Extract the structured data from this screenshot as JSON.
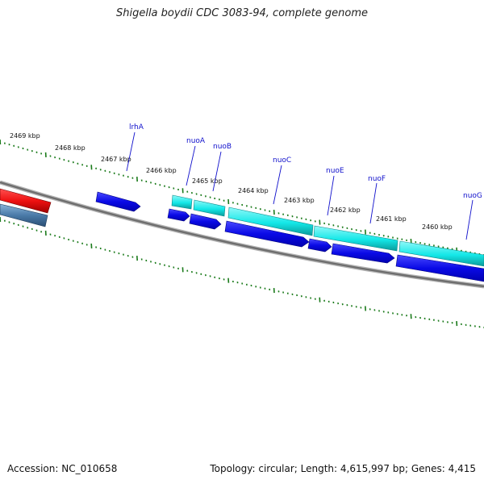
{
  "title": "Shigella boydii CDC 3083-94, complete genome",
  "footer": {
    "accession": "Accession: NC_010658",
    "summary": "Topology: circular; Length: 4,615,997 bp; Genes: 4,415"
  },
  "colors": {
    "backbone": "#7a7a7a",
    "tick": "#1a7a1a",
    "gene_label": "#1111cc",
    "gene_blue": "#0a0ae6",
    "gene_cyan": "#12e6e6",
    "gene_red": "#ee1111",
    "gene_steel": "#4a7aa8"
  },
  "ruler_labels": [
    "2469 kbp",
    "2468 kbp",
    "2467 kbp",
    "2466 kbp",
    "2465 kbp",
    "2464 kbp",
    "2463 kbp",
    "2462 kbp",
    "2461 kbp",
    "2460 kbp"
  ],
  "genes": [
    {
      "name": "lrhA",
      "track": "reverse",
      "color": "blue"
    },
    {
      "name": "nuoA",
      "track": "reverse",
      "color": "blue"
    },
    {
      "name": "nuoB",
      "track": "reverse",
      "color": "blue"
    },
    {
      "name": "nuoC",
      "track": "reverse",
      "color": "blue"
    },
    {
      "name": "nuoE",
      "track": "reverse",
      "color": "blue"
    },
    {
      "name": "nuoF",
      "track": "reverse",
      "color": "blue"
    },
    {
      "name": "nuoG",
      "track": "reverse",
      "color": "blue"
    }
  ]
}
